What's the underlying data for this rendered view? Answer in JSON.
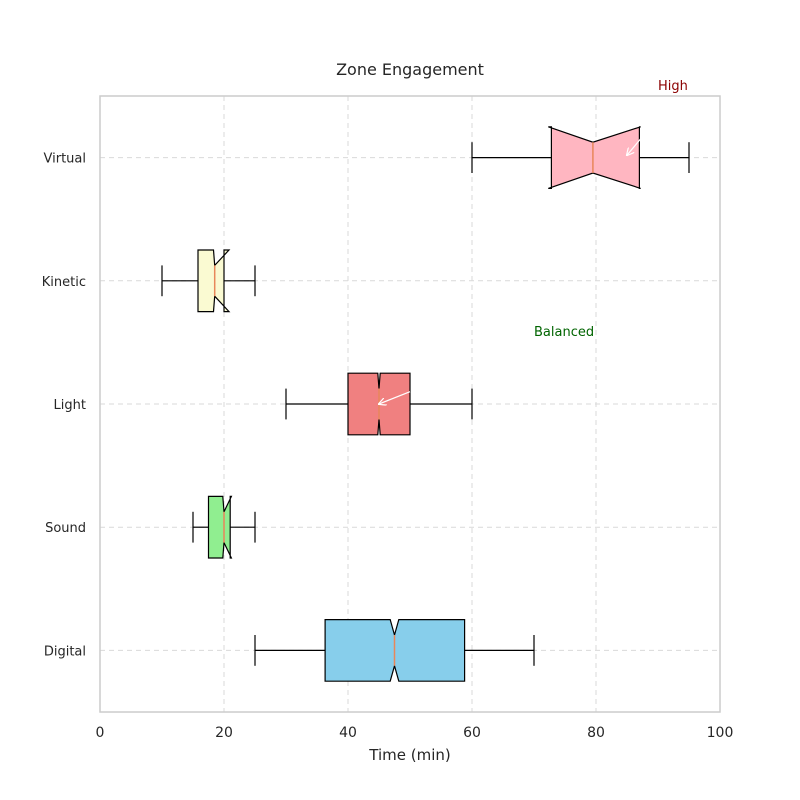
{
  "chart_data": {
    "type": "boxplot",
    "orientation": "horizontal",
    "notched": true,
    "title": "Zone Engagement",
    "xlabel": "Time (min)",
    "ylabel": "",
    "xlim": [
      0,
      100
    ],
    "xticks": [
      0,
      20,
      40,
      60,
      80,
      100
    ],
    "grid": true,
    "categories": [
      "Digital",
      "Sound",
      "Light",
      "Kinetic",
      "Virtual"
    ],
    "boxes": [
      {
        "category": "Digital",
        "whisker_low": 25,
        "q1": 36.3,
        "median": 47.5,
        "q3": 58.8,
        "whisker_high": 70,
        "notch_low": 46.8,
        "notch_high": 48.2,
        "color": "#87ceeb"
      },
      {
        "category": "Sound",
        "whisker_low": 15,
        "q1": 17.5,
        "median": 20,
        "q3": 21,
        "whisker_high": 25,
        "notch_low": 19.8,
        "notch_high": 21.2,
        "color": "#90ee90"
      },
      {
        "category": "Light",
        "whisker_low": 30,
        "q1": 40,
        "median": 45,
        "q3": 50,
        "whisker_high": 60,
        "notch_low": 44.8,
        "notch_high": 45.2,
        "color": "#f08080"
      },
      {
        "category": "Kinetic",
        "whisker_low": 10,
        "q1": 15.8,
        "median": 18.5,
        "q3": 20,
        "whisker_high": 25,
        "notch_low": 18.3,
        "notch_high": 20.8,
        "color": "#fafad2"
      },
      {
        "category": "Virtual",
        "whisker_low": 60,
        "q1": 72.8,
        "median": 79.5,
        "q3": 87,
        "whisker_high": 95,
        "notch_low": 72.3,
        "notch_high": 87.2,
        "color": "#ffb6c1"
      }
    ],
    "median_color": "#e8875a",
    "annotations": [
      {
        "text": "High",
        "x": 90,
        "y": "Virtual",
        "text_offset_cat": 0.55,
        "arrow_from": [
          87.5,
          "Virtual",
          0.17
        ],
        "arrow_to": [
          85,
          "Virtual",
          0.02
        ],
        "color": "#8b0000"
      },
      {
        "text": "Balanced",
        "x": 70,
        "y": "Light",
        "text_offset_cat": 0.55,
        "arrow_from": [
          50,
          "Light",
          0.1
        ],
        "arrow_to": [
          45,
          "Light",
          0.0
        ],
        "color": "#006400"
      }
    ]
  }
}
